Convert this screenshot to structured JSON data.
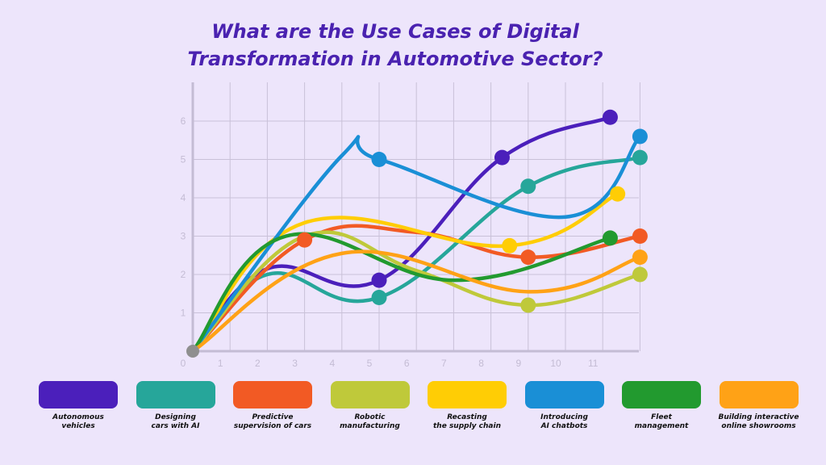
{
  "title_lines": [
    "What are the Use Cases of Digital",
    "Transformation in Automotive Sector?"
  ],
  "chart_data": {
    "type": "line",
    "title": "What are the Use Cases of Digital Transformation in Automotive Sector?",
    "xlabel": "",
    "ylabel": "",
    "xlim": [
      0,
      12
    ],
    "ylim": [
      0,
      7
    ],
    "x_ticks": [
      "0",
      "1",
      "2",
      "3",
      "4",
      "5",
      "6",
      "7",
      "8",
      "9",
      "10",
      "11"
    ],
    "y_ticks": [
      "1",
      "2",
      "3",
      "4",
      "5",
      "6"
    ],
    "grid": true,
    "legend_position": "bottom",
    "origin_point": {
      "x": 0,
      "y": 0,
      "color": "#8f8f8f"
    },
    "series": [
      {
        "name": "Autonomous vehicles",
        "legend_label": "Autonomous\nvehicles",
        "color": "#4b1fbb",
        "points": [
          [
            0,
            0
          ],
          [
            2,
            2.15
          ],
          [
            5,
            1.85
          ],
          [
            8.3,
            5.05
          ],
          [
            11.2,
            6.1
          ]
        ],
        "markers": [
          2,
          3,
          4
        ]
      },
      {
        "name": "Designing cars with AI",
        "legend_label": "Designing\ncars with AI",
        "color": "#26a69a",
        "points": [
          [
            0,
            0
          ],
          [
            2,
            2
          ],
          [
            5,
            1.4
          ],
          [
            9,
            4.3
          ],
          [
            12,
            5.05
          ]
        ],
        "markers": [
          2,
          3,
          4
        ]
      },
      {
        "name": "Predictive supervision of cars",
        "legend_label": "Predictive\nsupervision of cars",
        "color": "#f25a24",
        "points": [
          [
            0,
            0
          ],
          [
            3,
            2.9
          ],
          [
            6,
            3.1
          ],
          [
            9,
            2.45
          ],
          [
            12,
            3
          ]
        ],
        "markers": [
          1,
          3,
          4
        ]
      },
      {
        "name": "Robotic manufacturing",
        "legend_label": "Robotic\nmanufacturing",
        "color": "#bfc93a",
        "points": [
          [
            0,
            0
          ],
          [
            3,
            3
          ],
          [
            6,
            2.1
          ],
          [
            9,
            1.2
          ],
          [
            12,
            2
          ]
        ],
        "markers": [
          3,
          4
        ]
      },
      {
        "name": "Recasting the supply chain",
        "legend_label": "Recasting\nthe supply chain",
        "color": "#ffcd05",
        "points": [
          [
            0,
            0
          ],
          [
            3,
            3.35
          ],
          [
            8.5,
            2.75
          ],
          [
            11.4,
            4.1
          ]
        ],
        "markers": [
          2,
          3
        ]
      },
      {
        "name": "Introducing AI chatbots",
        "legend_label": "Introducing\nAI chatbots",
        "color": "#1a8fd6",
        "points": [
          [
            0,
            0
          ],
          [
            4,
            5.1
          ],
          [
            5,
            5
          ],
          [
            10,
            3.5
          ],
          [
            12,
            5.6
          ]
        ],
        "markers": [
          2,
          4
        ]
      },
      {
        "name": "Fleet management",
        "legend_label": "Fleet\nmanagement",
        "color": "#229a2f",
        "points": [
          [
            0,
            0
          ],
          [
            2.5,
            3
          ],
          [
            7,
            1.85
          ],
          [
            11.2,
            2.95
          ]
        ],
        "markers": [
          3
        ]
      },
      {
        "name": "Building interactive online showrooms",
        "legend_label": "Building interactive\nonline showrooms",
        "color": "#ffa216",
        "points": [
          [
            0,
            0
          ],
          [
            4,
            2.55
          ],
          [
            9,
            1.55
          ],
          [
            12,
            2.45
          ]
        ],
        "markers": [
          3
        ]
      }
    ]
  }
}
